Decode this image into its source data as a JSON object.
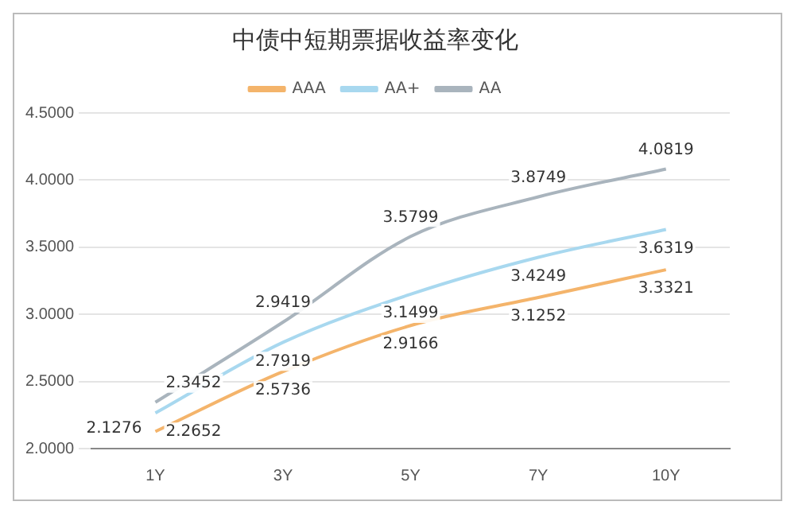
{
  "chart_data": {
    "type": "line",
    "title": "中债中短期票据收益率变化",
    "categories": [
      "1Y",
      "3Y",
      "5Y",
      "7Y",
      "10Y"
    ],
    "series": [
      {
        "name": "AAA",
        "color": "#f4b46b",
        "values": [
          2.1276,
          2.5736,
          2.9166,
          3.1252,
          3.3321
        ]
      },
      {
        "name": "AA+",
        "color": "#a8d8ef",
        "values": [
          2.2652,
          2.7919,
          3.1499,
          3.4249,
          3.6319
        ]
      },
      {
        "name": "AA",
        "color": "#a9b4bd",
        "values": [
          2.3452,
          2.9419,
          3.5799,
          3.8749,
          4.0819
        ]
      }
    ],
    "ylim": [
      2,
      4.5
    ],
    "yticks": [
      {
        "value": 2,
        "label": "2.0000"
      },
      {
        "value": 2.5,
        "label": "2.5000"
      },
      {
        "value": 3,
        "label": "3.0000"
      },
      {
        "value": 3.5,
        "label": "3.5000"
      },
      {
        "value": 4,
        "label": "4.0000"
      },
      {
        "value": 4.5,
        "label": "4.5000"
      }
    ],
    "grid": "y",
    "legend": "top",
    "marker": "none",
    "line_style": "solid",
    "data_labels": true
  }
}
